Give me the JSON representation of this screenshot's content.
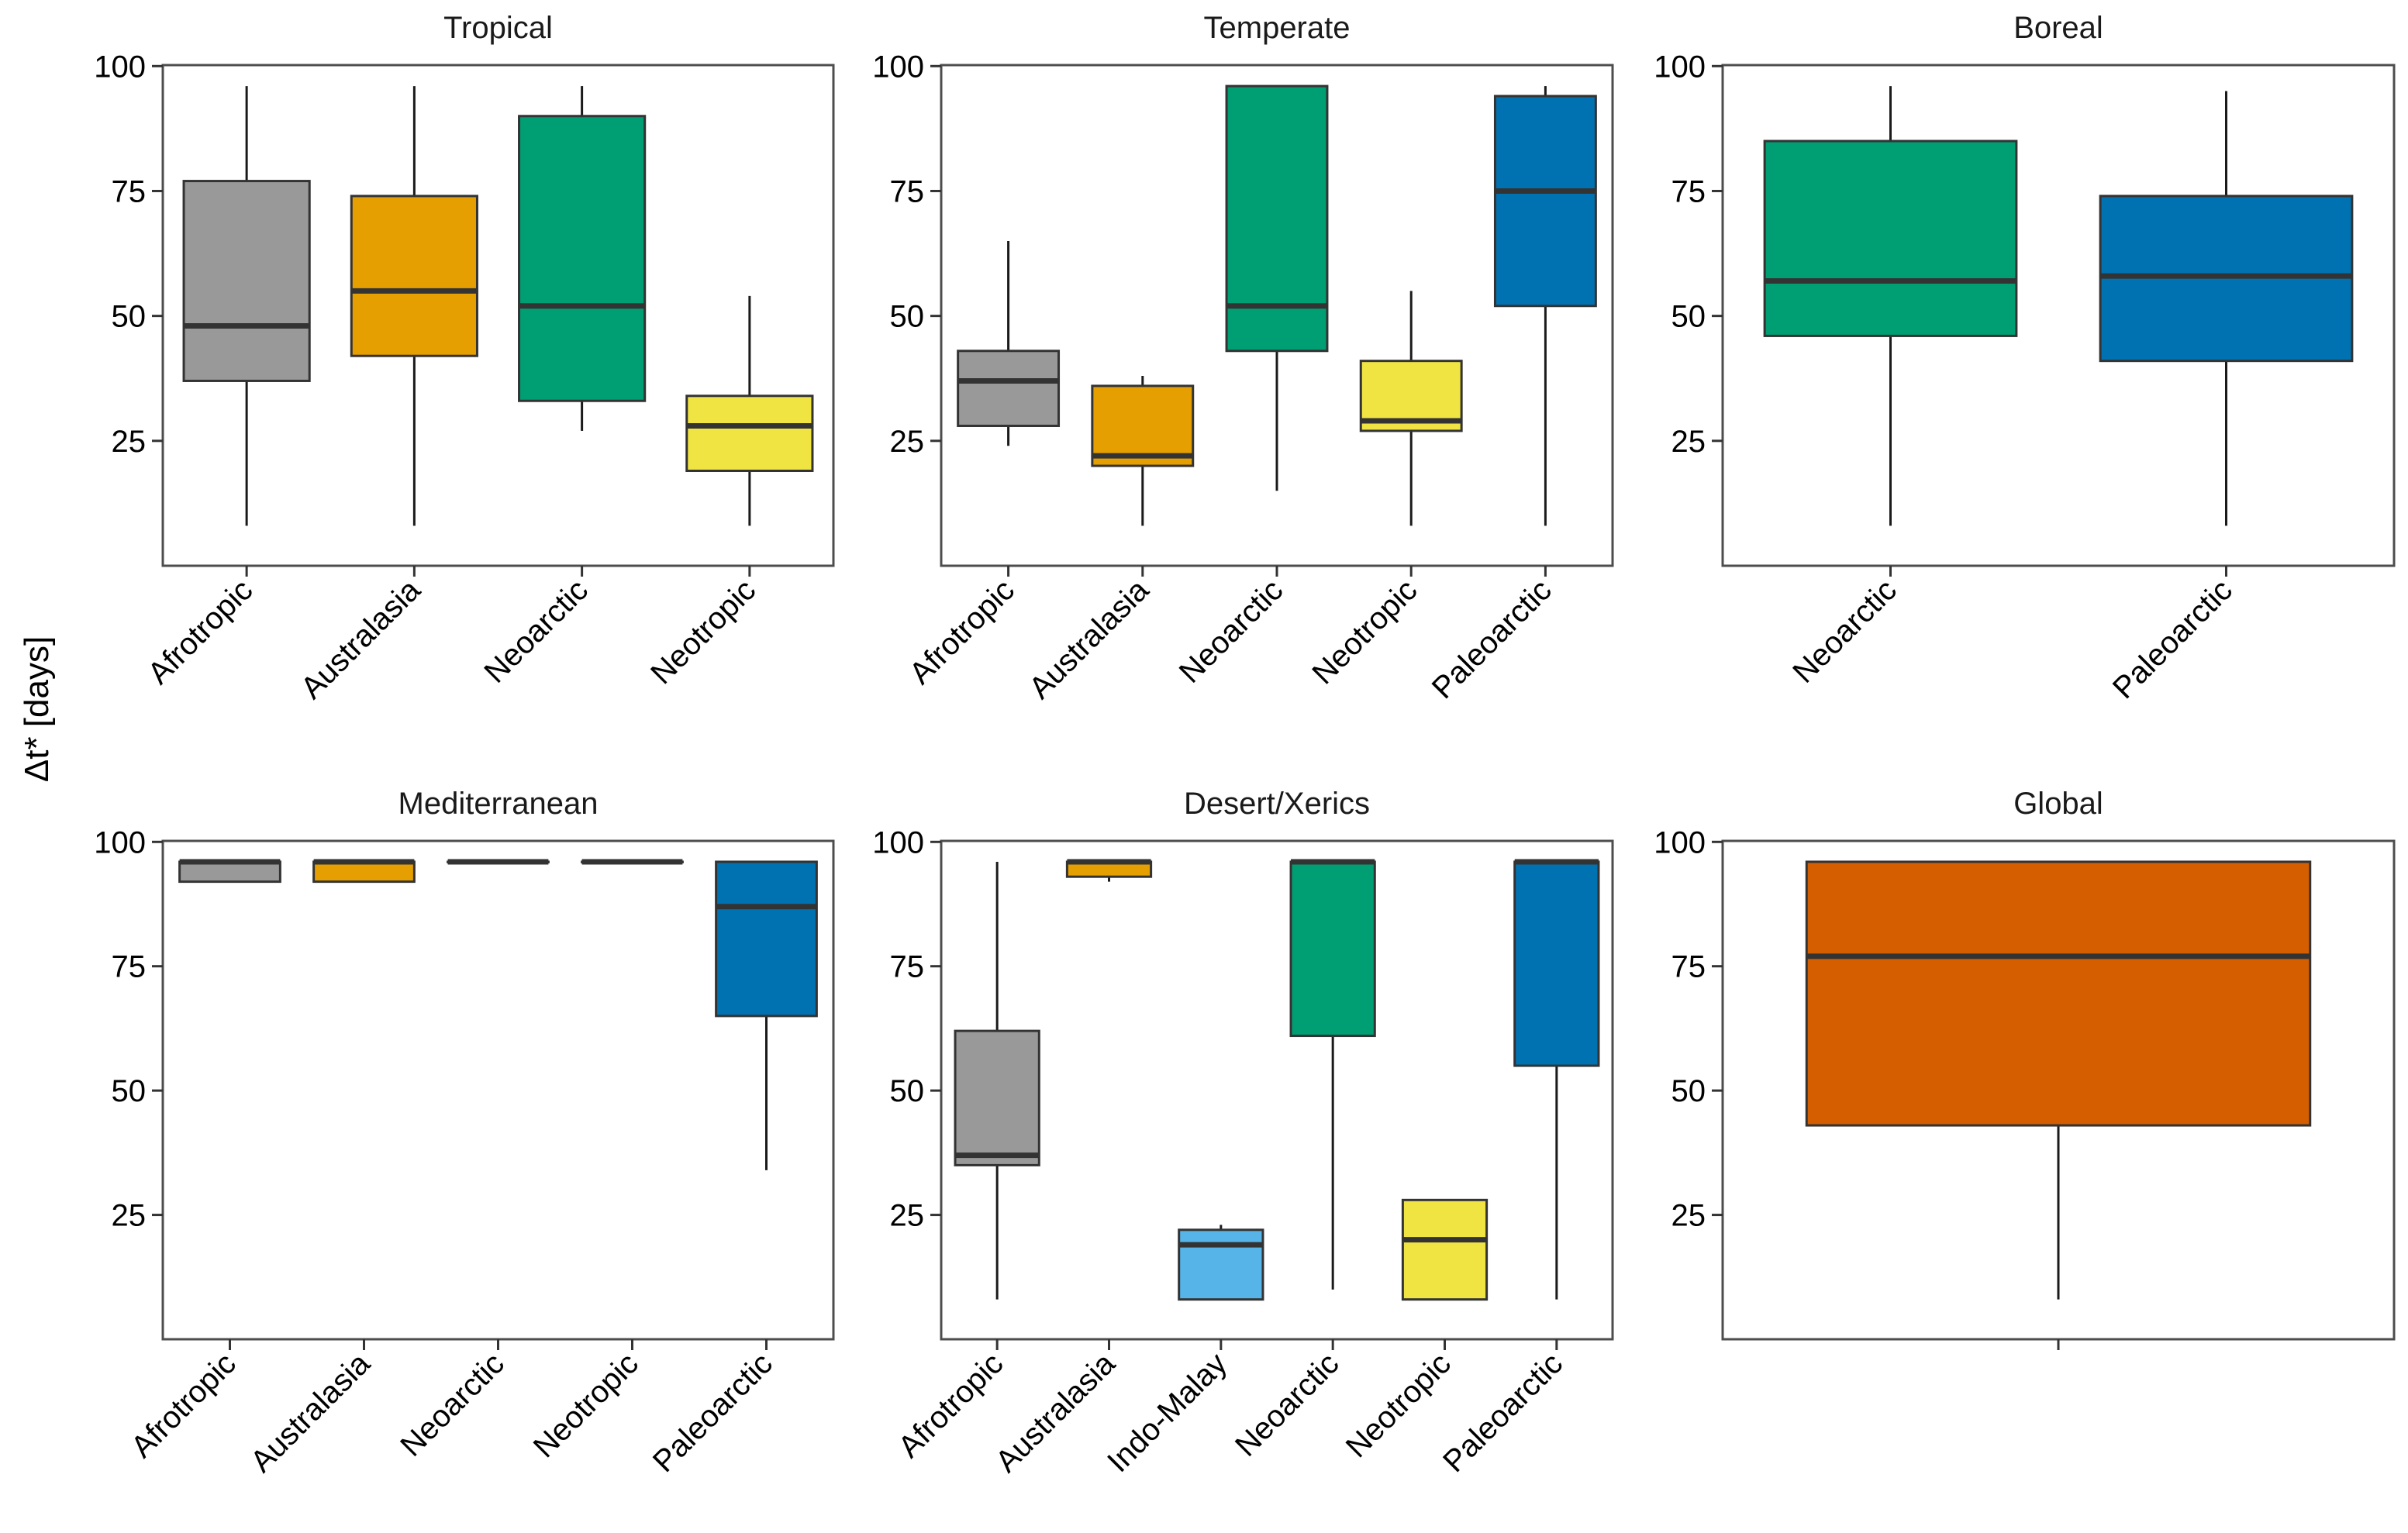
{
  "y_axis_label": "Δt* [days]",
  "colors": {
    "Afrotropic": "#999999",
    "Australasia": "#E69F00",
    "Neoarctic": "#009E73",
    "Neotropic": "#F0E442",
    "Paleoarctic": "#0072B2",
    "Indo-Malay": "#56B4E9",
    "Global": "#D55E00"
  },
  "chart_data": [
    {
      "type": "boxplot",
      "title": "Tropical",
      "ylim": [
        0,
        100
      ],
      "yticks": [
        25,
        50,
        75,
        100
      ],
      "groups": [
        {
          "label": "Afrotropic",
          "min": 8,
          "q1": 37,
          "median": 48,
          "q3": 77,
          "max": 96
        },
        {
          "label": "Australasia",
          "min": 8,
          "q1": 42,
          "median": 55,
          "q3": 74,
          "max": 96
        },
        {
          "label": "Neoarctic",
          "min": 27,
          "q1": 33,
          "median": 52,
          "q3": 90,
          "max": 96
        },
        {
          "label": "Neotropic",
          "min": 8,
          "q1": 19,
          "median": 28,
          "q3": 34,
          "max": 54
        }
      ]
    },
    {
      "type": "boxplot",
      "title": "Temperate",
      "ylim": [
        0,
        100
      ],
      "yticks": [
        25,
        50,
        75,
        100
      ],
      "groups": [
        {
          "label": "Afrotropic",
          "min": 24,
          "q1": 28,
          "median": 37,
          "q3": 43,
          "max": 65
        },
        {
          "label": "Australasia",
          "min": 8,
          "q1": 20,
          "median": 22,
          "q3": 36,
          "max": 38
        },
        {
          "label": "Neoarctic",
          "min": 15,
          "q1": 43,
          "median": 52,
          "q3": 96,
          "max": 96
        },
        {
          "label": "Neotropic",
          "min": 8,
          "q1": 27,
          "median": 29,
          "q3": 41,
          "max": 55
        },
        {
          "label": "Paleoarctic",
          "min": 8,
          "q1": 52,
          "median": 75,
          "q3": 94,
          "max": 96
        }
      ]
    },
    {
      "type": "boxplot",
      "title": "Boreal",
      "ylim": [
        0,
        100
      ],
      "yticks": [
        25,
        50,
        75,
        100
      ],
      "groups": [
        {
          "label": "Neoarctic",
          "min": 8,
          "q1": 46,
          "median": 57,
          "q3": 85,
          "max": 96
        },
        {
          "label": "Paleoarctic",
          "min": 8,
          "q1": 41,
          "median": 58,
          "q3": 74,
          "max": 95
        }
      ]
    },
    {
      "type": "boxplot",
      "title": "Mediterranean",
      "ylim": [
        0,
        100
      ],
      "yticks": [
        25,
        50,
        75,
        100
      ],
      "groups": [
        {
          "label": "Afrotropic",
          "min": 92,
          "q1": 92,
          "median": 96,
          "q3": 96,
          "max": 96
        },
        {
          "label": "Australasia",
          "min": 92,
          "q1": 92,
          "median": 96,
          "q3": 96,
          "max": 96
        },
        {
          "label": "Neoarctic",
          "min": 96,
          "q1": 96,
          "median": 96,
          "q3": 96,
          "max": 96
        },
        {
          "label": "Neotropic",
          "min": 96,
          "q1": 96,
          "median": 96,
          "q3": 96,
          "max": 96
        },
        {
          "label": "Paleoarctic",
          "min": 34,
          "q1": 65,
          "median": 87,
          "q3": 96,
          "max": 96
        }
      ]
    },
    {
      "type": "boxplot",
      "title": "Desert/Xerics",
      "ylim": [
        0,
        100
      ],
      "yticks": [
        25,
        50,
        75,
        100
      ],
      "groups": [
        {
          "label": "Afrotropic",
          "min": 8,
          "q1": 35,
          "median": 37,
          "q3": 62,
          "max": 96
        },
        {
          "label": "Australasia",
          "min": 92,
          "q1": 93,
          "median": 96,
          "q3": 96,
          "max": 96
        },
        {
          "label": "Indo-Malay",
          "min": 8,
          "q1": 8,
          "median": 19,
          "q3": 22,
          "max": 23
        },
        {
          "label": "Neoarctic",
          "min": 10,
          "q1": 61,
          "median": 96,
          "q3": 96,
          "max": 96
        },
        {
          "label": "Neotropic",
          "min": 8,
          "q1": 8,
          "median": 20,
          "q3": 28,
          "max": 28
        },
        {
          "label": "Paleoarctic",
          "min": 8,
          "q1": 55,
          "median": 96,
          "q3": 96,
          "max": 96
        }
      ]
    },
    {
      "type": "boxplot",
      "title": "Global",
      "ylim": [
        0,
        100
      ],
      "yticks": [
        25,
        50,
        75,
        100
      ],
      "groups": [
        {
          "label": "",
          "color_key": "Global",
          "min": 8,
          "q1": 43,
          "median": 77,
          "q3": 96,
          "max": 96
        }
      ]
    }
  ]
}
